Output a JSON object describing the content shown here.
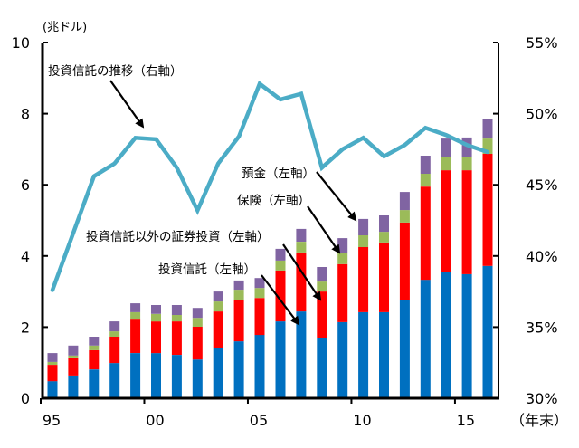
{
  "chart_data": {
    "type": "bar+line",
    "title": "",
    "x": [
      "1995",
      "1996",
      "1997",
      "1998",
      "1999",
      "2000",
      "2001",
      "2002",
      "2003",
      "2004",
      "2005",
      "2006",
      "2007",
      "2008",
      "2009",
      "2010",
      "2011",
      "2012",
      "2013",
      "2014",
      "2015",
      "2016"
    ],
    "x_tick_labels": [
      "95",
      "00",
      "05",
      "10",
      "15"
    ],
    "x_tick_years": [
      "1995",
      "2000",
      "2005",
      "2010",
      "2015"
    ],
    "xlabel": "（年末）",
    "left_axis": {
      "unit_label": "(兆ドル)",
      "ylim": [
        0,
        10
      ],
      "ticks": [
        0,
        2,
        4,
        6,
        8,
        10
      ],
      "tick_labels": [
        "0",
        "2",
        "4",
        "6",
        "8",
        "10"
      ]
    },
    "right_axis": {
      "ylim": [
        30,
        55
      ],
      "ticks": [
        30,
        35,
        40,
        45,
        50,
        55
      ],
      "tick_labels": [
        "30%",
        "35%",
        "40%",
        "45%",
        "50%",
        "55%"
      ]
    },
    "bar_series": [
      {
        "name": "投資信託（左軸）",
        "color": "#0070C0",
        "values": [
          0.48,
          0.64,
          0.81,
          0.99,
          1.27,
          1.27,
          1.22,
          1.09,
          1.4,
          1.6,
          1.78,
          2.16,
          2.44,
          1.7,
          2.14,
          2.42,
          2.42,
          2.75,
          3.33,
          3.54,
          3.49,
          3.72
        ]
      },
      {
        "name": "投資信託以外の証券投資（左軸）",
        "color": "#FF0000",
        "values": [
          0.46,
          0.48,
          0.54,
          0.74,
          0.94,
          0.89,
          0.94,
          0.92,
          1.04,
          1.17,
          1.04,
          1.43,
          1.66,
          1.3,
          1.63,
          1.83,
          1.96,
          2.19,
          2.62,
          2.87,
          2.92,
          3.15
        ]
      },
      {
        "name": "保険（左軸）",
        "color": "#9BBB59",
        "values": [
          0.08,
          0.08,
          0.13,
          0.15,
          0.21,
          0.21,
          0.18,
          0.25,
          0.28,
          0.28,
          0.28,
          0.28,
          0.3,
          0.28,
          0.3,
          0.33,
          0.3,
          0.35,
          0.36,
          0.38,
          0.38,
          0.43
        ]
      },
      {
        "name": "預金（左軸）",
        "color": "#8064A2",
        "values": [
          0.25,
          0.28,
          0.25,
          0.28,
          0.25,
          0.25,
          0.28,
          0.28,
          0.28,
          0.26,
          0.28,
          0.33,
          0.36,
          0.41,
          0.43,
          0.46,
          0.46,
          0.51,
          0.51,
          0.51,
          0.54,
          0.56
        ]
      }
    ],
    "line_series": {
      "name": "投資信託の推移（右軸）",
      "axis": "right",
      "color": "#4BACC6",
      "values": [
        37.6,
        41.6,
        45.6,
        46.5,
        48.3,
        48.2,
        46.2,
        43.2,
        46.5,
        48.4,
        52.1,
        51.0,
        51.4,
        46.2,
        47.5,
        48.3,
        47.0,
        47.8,
        49.0,
        48.5,
        47.8,
        47.3
      ]
    },
    "grid": false,
    "legend": "annotations-with-arrows",
    "annotations": [
      {
        "text": "投資信託の推移（右軸）",
        "points_to": "line",
        "target_year": "2000"
      },
      {
        "text": "預金（左軸）",
        "points_to": "預金",
        "target_year": "2010"
      },
      {
        "text": "保険（左軸）",
        "points_to": "保険",
        "target_year": "2009"
      },
      {
        "text": "投資信託以外の証券投資（左軸）",
        "points_to": "投資信託以外の証券投資",
        "target_year": "2008"
      },
      {
        "text": "投資信託（左軸）",
        "points_to": "投資信託",
        "target_year": "2007"
      }
    ]
  }
}
